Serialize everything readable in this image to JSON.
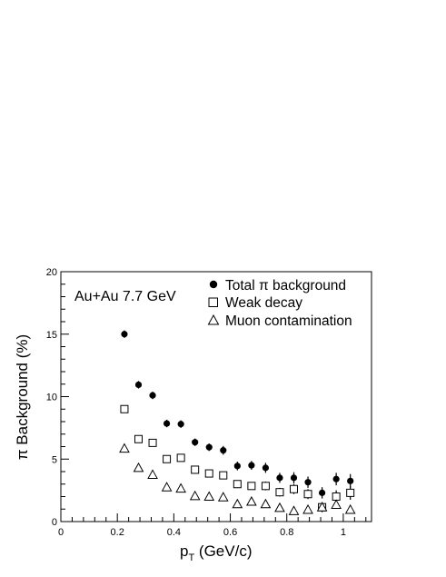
{
  "chart_data": {
    "type": "scatter",
    "annotation": "Au+Au 7.7 GeV",
    "xlabel_main": "p",
    "xlabel_sub": "T",
    "xlabel_unit": " (GeV/c)",
    "ylabel": "π Background (%)",
    "xlim": [
      0,
      1.1
    ],
    "ylim": [
      0,
      20
    ],
    "x_ticks": [
      0,
      0.2,
      0.4,
      0.6,
      0.8,
      1.0
    ],
    "x_tick_labels": [
      "0",
      "0.2",
      "0.4",
      "0.6",
      "0.8",
      "1"
    ],
    "y_ticks": [
      0,
      5,
      10,
      15,
      20
    ],
    "y_tick_labels": [
      "0",
      "5",
      "10",
      "15",
      "20"
    ],
    "grid": false,
    "legend_position": "top-right",
    "series": [
      {
        "name": "Total π background",
        "marker": "filled-circle",
        "color": "#000000",
        "x": [
          0.225,
          0.275,
          0.325,
          0.375,
          0.425,
          0.475,
          0.525,
          0.575,
          0.625,
          0.675,
          0.725,
          0.775,
          0.825,
          0.875,
          0.925,
          0.975,
          1.025
        ],
        "y": [
          15.0,
          10.95,
          10.1,
          7.85,
          7.8,
          6.35,
          5.95,
          5.7,
          4.45,
          4.5,
          4.3,
          3.5,
          3.5,
          3.15,
          2.3,
          3.4,
          3.25
        ],
        "err": [
          0.3,
          0.3,
          0.3,
          0.3,
          0.3,
          0.3,
          0.3,
          0.35,
          0.35,
          0.35,
          0.4,
          0.4,
          0.45,
          0.45,
          0.45,
          0.5,
          0.55
        ]
      },
      {
        "name": "Weak decay",
        "marker": "open-square",
        "color": "#000000",
        "x": [
          0.225,
          0.275,
          0.325,
          0.375,
          0.425,
          0.475,
          0.525,
          0.575,
          0.625,
          0.675,
          0.725,
          0.775,
          0.825,
          0.875,
          0.925,
          0.975,
          1.025
        ],
        "y": [
          9.0,
          6.6,
          6.3,
          5.0,
          5.1,
          4.15,
          3.85,
          3.7,
          3.0,
          2.85,
          2.85,
          2.35,
          2.6,
          2.2,
          1.15,
          2.0,
          2.3
        ],
        "err": [
          0.2,
          0.2,
          0.2,
          0.2,
          0.25,
          0.25,
          0.25,
          0.25,
          0.3,
          0.3,
          0.35,
          0.35,
          0.4,
          0.4,
          0.4,
          0.5,
          0.55
        ]
      },
      {
        "name": "Muon contamination",
        "marker": "open-triangle",
        "color": "#000000",
        "x": [
          0.225,
          0.275,
          0.325,
          0.375,
          0.425,
          0.475,
          0.525,
          0.575,
          0.625,
          0.675,
          0.725,
          0.775,
          0.825,
          0.875,
          0.925,
          0.975,
          1.025
        ],
        "y": [
          5.85,
          4.3,
          3.75,
          2.75,
          2.65,
          2.05,
          2.0,
          1.95,
          1.4,
          1.6,
          1.4,
          1.1,
          0.85,
          0.95,
          1.15,
          1.35,
          0.95
        ],
        "err": [
          0,
          0,
          0,
          0,
          0,
          0,
          0,
          0,
          0,
          0,
          0,
          0,
          0,
          0,
          0,
          0,
          0
        ]
      }
    ]
  }
}
